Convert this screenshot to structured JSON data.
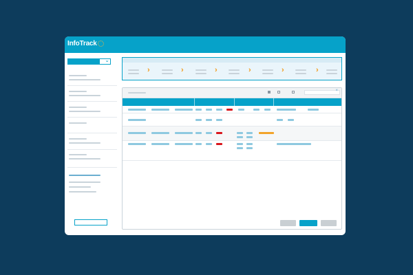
{
  "app": {
    "logo_text": "InfoTrack",
    "colors": {
      "brand": "#06a2c9",
      "background": "#0d3c5c",
      "accent_step": "#f29a1a",
      "status_red": "#d9161c",
      "status_orange": "#f2a42a"
    }
  },
  "sidebar": {
    "select_icon": "chevron-down-icon",
    "items": 7,
    "active_item": 7
  },
  "progress_steps": {
    "count": 7,
    "separator_icon": "chevron-right-icon"
  },
  "table": {
    "toolbar_icons": [
      "export-icon",
      "checkbox-icon",
      "checkbox-icon"
    ],
    "search_clear_icon": "close-icon",
    "rows": [
      {
        "status": "red"
      },
      {
        "status": "none"
      },
      {
        "status": "red"
      },
      {
        "status": "red"
      }
    ]
  },
  "footer": {
    "buttons": [
      "secondary",
      "primary",
      "secondary"
    ]
  }
}
